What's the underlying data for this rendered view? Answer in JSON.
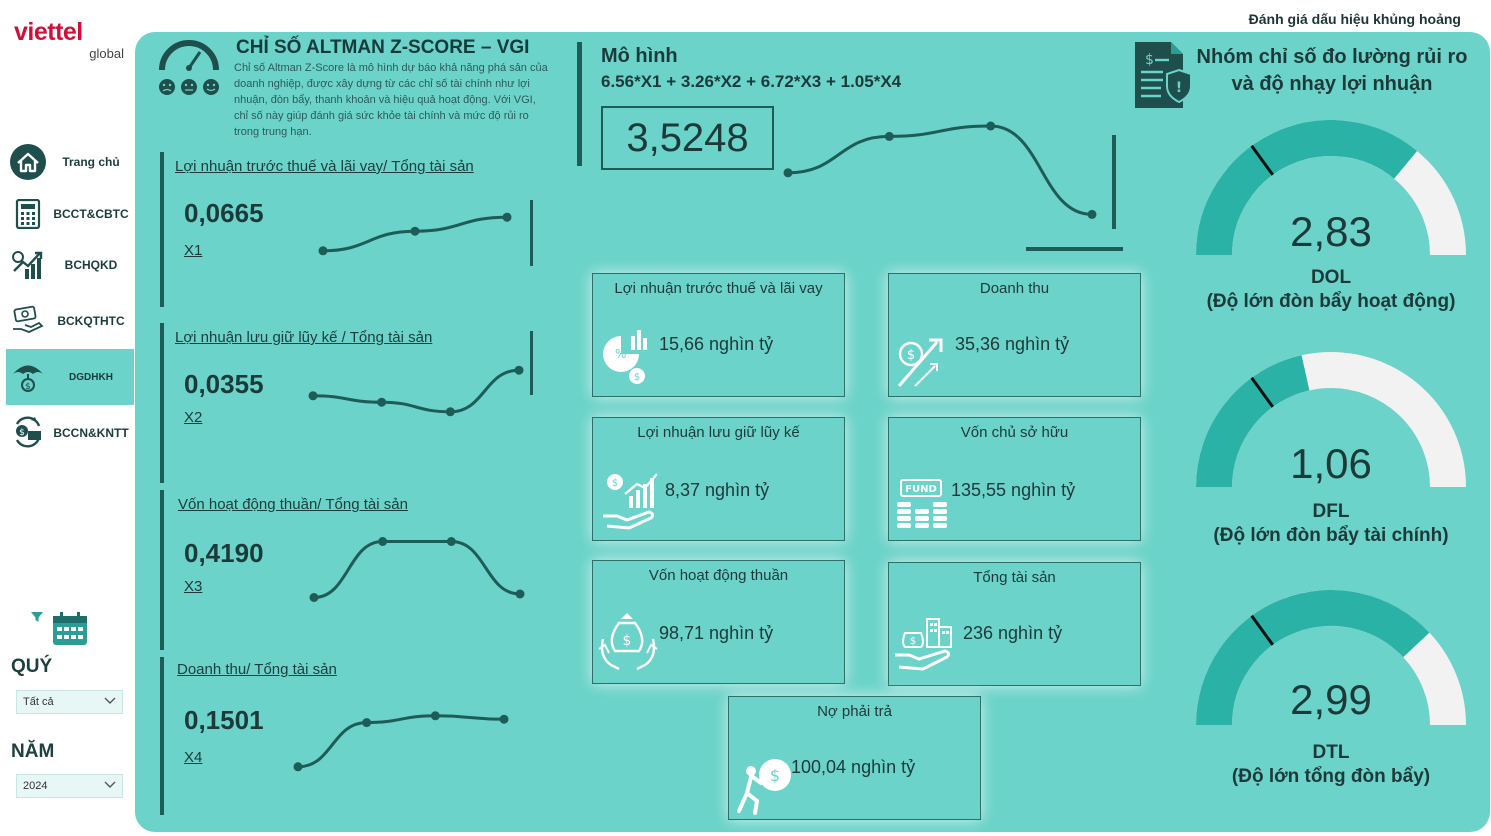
{
  "header": {
    "note": "Đánh giá dấu hiệu khủng hoảng"
  },
  "logo": {
    "main": "viettel",
    "sub": "global"
  },
  "sidebar": {
    "items": [
      {
        "label": "Trang chủ",
        "icon": "home-icon"
      },
      {
        "label": "BCCT&CBTC",
        "icon": "calculator-icon"
      },
      {
        "label": "BCHQKD",
        "icon": "growth-chart-icon"
      },
      {
        "label": "BCKQTHTC",
        "icon": "money-hand-icon"
      },
      {
        "label": "DGDHKH",
        "icon": "umbrella-icon",
        "active": true
      },
      {
        "label": "BCCN&KNTT",
        "icon": "money-cycle-icon"
      }
    ],
    "quarter_title": "QUÝ",
    "quarter_value": "Tất cả",
    "year_title": "NĂM",
    "year_value": "2024"
  },
  "zscore": {
    "title": "CHỈ SỐ ALTMAN Z-SCORE – VGI",
    "description": "Chỉ số Altman Z-Score là mô hình dự báo khả năng phá sản của doanh nghiệp, được xây dựng từ các chỉ số tài chính như lợi nhuận, đòn bẩy, thanh khoản và hiệu quả hoạt động. Với VGI, chỉ số này giúp đánh giá sức khỏe tài chính và mức độ rủi ro trong trung hạn."
  },
  "ratios": [
    {
      "label": "Lợi nhuận trước thuế và lãi vay/ Tổng tài sản",
      "value": "0,0665",
      "name": "X1",
      "trend": [
        0.2,
        0.55,
        0.8
      ]
    },
    {
      "label": "Lợi nhuận lưu giữ lũy kế / Tổng tài sản",
      "value": "0,0355",
      "name": "X2",
      "trend": [
        0.55,
        0.45,
        0.3,
        0.95
      ]
    },
    {
      "label": "Vốn hoạt động thuần/ Tổng tài sản",
      "value": "0,4190",
      "name": "X3",
      "trend": [
        0.15,
        0.95,
        0.95,
        0.2
      ]
    },
    {
      "label": "Doanh thu/ Tổng tài sản",
      "value": "0,1501",
      "name": "X4",
      "trend": [
        0.15,
        0.8,
        0.9,
        0.85
      ]
    }
  ],
  "model": {
    "title": "Mô hình",
    "formula": "6.56*X1 + 3.26*X2 + 6.72*X3 + 1.05*X4",
    "score": "3,5248",
    "trend": [
      0.55,
      0.9,
      1.0,
      0.15
    ]
  },
  "metrics": [
    {
      "title": "Lợi nhuận trước thuế và lãi vay",
      "value": "15,66 nghìn tỷ",
      "icon": "pie-chart-money-icon"
    },
    {
      "title": "Doanh thu",
      "value": "35,36 nghìn tỷ",
      "icon": "revenue-arrow-icon"
    },
    {
      "title": "Lợi nhuận lưu giữ lũy kế",
      "value": "8,37 nghìn tỷ",
      "icon": "hand-chart-icon"
    },
    {
      "title": "Vốn chủ sở hữu",
      "value": "135,55 nghìn tỷ",
      "icon": "fund-coins-icon"
    },
    {
      "title": "Vốn hoạt động thuần",
      "value": "98,71 nghìn tỷ",
      "icon": "money-bag-cycle-icon"
    },
    {
      "title": "Tổng tài sản",
      "value": "236 nghìn tỷ",
      "icon": "hand-assets-icon"
    },
    {
      "title": "Nợ phải trả",
      "value": "100,04 nghìn tỷ",
      "icon": "debt-burden-icon"
    }
  ],
  "risk": {
    "title": "Nhóm chỉ số đo lường rủi ro và độ nhạy lợi nhuận",
    "gauges": [
      {
        "value": "2,83",
        "name": "DOL",
        "desc": "(Độ lớn đòn bẩy hoạt động)",
        "fill": 0.72,
        "target": 0.3
      },
      {
        "value": "1,06",
        "name": "DFL",
        "desc": "(Độ lớn đòn bẩy tài chính)",
        "fill": 0.43,
        "target": 0.3
      },
      {
        "value": "2,99",
        "name": "DTL",
        "desc": "(Độ lớn tổng đòn bẩy)",
        "fill": 0.76,
        "target": 0.3
      }
    ]
  },
  "colors": {
    "panel": "#6bd3c9",
    "dark": "#1e5c57",
    "gauge_fill": "#2bb2a6",
    "gauge_bg": "#f2f2f2",
    "brand": "#d1103a"
  }
}
